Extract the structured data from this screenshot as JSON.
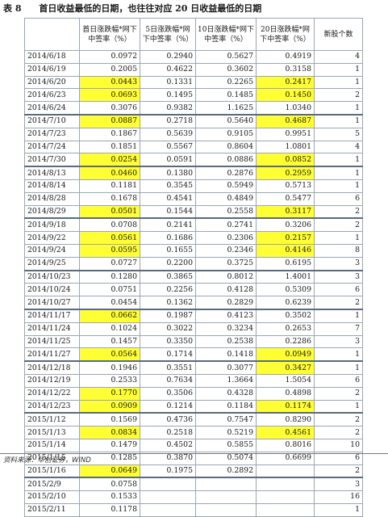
{
  "caption": {
    "label": "表 8",
    "title": "首日收益最低的日期，也往往对应 20 日收益最低的日期"
  },
  "table": {
    "columns": [
      "",
      "首日涨跌幅*网下中签率（%）",
      "5日涨跌幅*网下中签率（%）",
      "10日涨跌幅*网下中签率（%）",
      "20日涨跌幅*网下中签率（%）",
      "新股个数"
    ],
    "rows": [
      {
        "date": "2014/6/18",
        "d1": "0.0972",
        "d5": "0.2940",
        "d10": "0.5627",
        "d20": "0.4919",
        "n": "4",
        "h1": false,
        "h20": false,
        "sep": false
      },
      {
        "date": "2014/6/19",
        "d1": "0.2005",
        "d5": "0.4622",
        "d10": "0.3602",
        "d20": "0.3158",
        "n": "1",
        "h1": false,
        "h20": false,
        "sep": false
      },
      {
        "date": "2014/6/20",
        "d1": "0.0443",
        "d5": "0.1331",
        "d10": "0.2265",
        "d20": "0.2417",
        "n": "1",
        "h1": true,
        "h20": true,
        "sep": false
      },
      {
        "date": "2014/6/23",
        "d1": "0.0693",
        "d5": "0.1495",
        "d10": "0.1485",
        "d20": "0.1450",
        "n": "2",
        "h1": true,
        "h20": true,
        "sep": false
      },
      {
        "date": "2014/6/24",
        "d1": "0.3076",
        "d5": "0.9382",
        "d10": "1.1625",
        "d20": "1.0340",
        "n": "1",
        "h1": false,
        "h20": false,
        "sep": false
      },
      {
        "date": "2014/7/10",
        "d1": "0.0887",
        "d5": "0.2718",
        "d10": "0.5640",
        "d20": "0.4687",
        "n": "1",
        "h1": true,
        "h20": true,
        "sep": true
      },
      {
        "date": "2014/7/23",
        "d1": "0.1867",
        "d5": "0.5639",
        "d10": "0.9105",
        "d20": "0.9951",
        "n": "5",
        "h1": false,
        "h20": false,
        "sep": false
      },
      {
        "date": "2014/7/24",
        "d1": "0.1851",
        "d5": "0.5567",
        "d10": "0.8604",
        "d20": "1.0801",
        "n": "4",
        "h1": false,
        "h20": false,
        "sep": false
      },
      {
        "date": "2014/7/30",
        "d1": "0.0254",
        "d5": "0.0591",
        "d10": "0.0886",
        "d20": "0.0852",
        "n": "1",
        "h1": true,
        "h20": true,
        "sep": false
      },
      {
        "date": "2014/8/13",
        "d1": "0.0460",
        "d5": "0.1380",
        "d10": "0.2876",
        "d20": "0.2959",
        "n": "1",
        "h1": true,
        "h20": true,
        "sep": true
      },
      {
        "date": "2014/8/14",
        "d1": "0.1181",
        "d5": "0.3545",
        "d10": "0.5949",
        "d20": "0.5713",
        "n": "1",
        "h1": false,
        "h20": false,
        "sep": false
      },
      {
        "date": "2014/8/28",
        "d1": "0.1678",
        "d5": "0.4541",
        "d10": "0.4849",
        "d20": "0.5477",
        "n": "6",
        "h1": false,
        "h20": false,
        "sep": false
      },
      {
        "date": "2014/8/29",
        "d1": "0.0501",
        "d5": "0.1544",
        "d10": "0.2558",
        "d20": "0.3117",
        "n": "2",
        "h1": true,
        "h20": true,
        "sep": false
      },
      {
        "date": "2014/9/18",
        "d1": "0.0708",
        "d5": "0.2141",
        "d10": "0.2741",
        "d20": "0.3206",
        "n": "2",
        "h1": false,
        "h20": false,
        "sep": true
      },
      {
        "date": "2014/9/22",
        "d1": "0.0561",
        "d5": "0.1686",
        "d10": "0.2306",
        "d20": "0.2157",
        "n": "1",
        "h1": true,
        "h20": true,
        "sep": false
      },
      {
        "date": "2014/9/24",
        "d1": "0.0595",
        "d5": "0.1655",
        "d10": "0.2346",
        "d20": "0.4146",
        "n": "8",
        "h1": true,
        "h20": true,
        "sep": false
      },
      {
        "date": "2014/9/25",
        "d1": "0.0727",
        "d5": "0.2200",
        "d10": "0.3725",
        "d20": "0.6195",
        "n": "3",
        "h1": false,
        "h20": false,
        "sep": false
      },
      {
        "date": "2014/10/23",
        "d1": "0.1280",
        "d5": "0.3865",
        "d10": "0.8012",
        "d20": "1.4001",
        "n": "3",
        "h1": false,
        "h20": false,
        "sep": true
      },
      {
        "date": "2014/10/24",
        "d1": "0.0751",
        "d5": "0.2256",
        "d10": "0.4128",
        "d20": "0.5309",
        "n": "6",
        "h1": false,
        "h20": false,
        "sep": false
      },
      {
        "date": "2014/10/27",
        "d1": "0.0454",
        "d5": "0.1362",
        "d10": "0.2829",
        "d20": "0.6239",
        "n": "2",
        "h1": false,
        "h20": false,
        "sep": false
      },
      {
        "date": "2014/11/17",
        "d1": "0.0662",
        "d5": "0.1987",
        "d10": "0.4123",
        "d20": "0.3502",
        "n": "1",
        "h1": true,
        "h20": false,
        "sep": true
      },
      {
        "date": "2014/11/24",
        "d1": "0.1024",
        "d5": "0.3022",
        "d10": "0.3234",
        "d20": "0.2653",
        "n": "7",
        "h1": false,
        "h20": false,
        "sep": false
      },
      {
        "date": "2014/11/25",
        "d1": "0.1457",
        "d5": "0.3350",
        "d10": "0.2538",
        "d20": "0.2286",
        "n": "3",
        "h1": false,
        "h20": false,
        "sep": false
      },
      {
        "date": "2014/11/27",
        "d1": "0.0564",
        "d5": "0.1714",
        "d10": "0.1418",
        "d20": "0.0949",
        "n": "1",
        "h1": true,
        "h20": true,
        "sep": false
      },
      {
        "date": "2014/12/18",
        "d1": "0.1946",
        "d5": "0.3551",
        "d10": "0.3077",
        "d20": "0.3427",
        "n": "1",
        "h1": false,
        "h20": true,
        "sep": true
      },
      {
        "date": "2014/12/19",
        "d1": "0.2533",
        "d5": "0.7634",
        "d10": "1.3664",
        "d20": "1.5054",
        "n": "6",
        "h1": false,
        "h20": false,
        "sep": false
      },
      {
        "date": "2014/12/22",
        "d1": "0.1770",
        "d5": "0.3506",
        "d10": "0.4328",
        "d20": "0.4898",
        "n": "2",
        "h1": true,
        "h20": false,
        "sep": false
      },
      {
        "date": "2014/12/23",
        "d1": "0.0909",
        "d5": "0.1214",
        "d10": "0.1184",
        "d20": "0.1174",
        "n": "1",
        "h1": true,
        "h20": true,
        "sep": false
      },
      {
        "date": "2015/1/12",
        "d1": "0.1569",
        "d5": "0.4736",
        "d10": "0.7547",
        "d20": "0.8290",
        "n": "2",
        "h1": false,
        "h20": false,
        "sep": true
      },
      {
        "date": "2015/1/13",
        "d1": "0.0834",
        "d5": "0.2518",
        "d10": "0.5219",
        "d20": "0.4561",
        "n": "2",
        "h1": true,
        "h20": true,
        "sep": false
      },
      {
        "date": "2015/1/14",
        "d1": "0.1479",
        "d5": "0.4502",
        "d10": "0.5855",
        "d20": "0.8016",
        "n": "10",
        "h1": false,
        "h20": false,
        "sep": false
      },
      {
        "date": "2015/1/15",
        "d1": "0.1285",
        "d5": "0.3870",
        "d10": "0.5074",
        "d20": "0.6699",
        "n": "6",
        "h1": false,
        "h20": false,
        "sep": false
      },
      {
        "date": "2015/1/16",
        "d1": "0.0649",
        "d5": "0.1975",
        "d10": "0.2892",
        "d20": "",
        "n": "2",
        "h1": true,
        "h20": false,
        "sep": false
      },
      {
        "date": "2015/2/9",
        "d1": "0.0758",
        "d5": "",
        "d10": "",
        "d20": "",
        "n": "3",
        "h1": false,
        "h20": false,
        "sep": true
      },
      {
        "date": "2015/2/10",
        "d1": "0.1533",
        "d5": "",
        "d10": "",
        "d20": "",
        "n": "16",
        "h1": false,
        "h20": false,
        "sep": false
      },
      {
        "date": "2015/2/11",
        "d1": "0.1178",
        "d5": "",
        "d10": "",
        "d20": "",
        "n": "1",
        "h1": false,
        "h20": false,
        "sep": false
      }
    ]
  },
  "source": "资料来源：华创证券，WIND",
  "colors": {
    "highlight": "#ffff33",
    "border": "#9aa6b5"
  }
}
